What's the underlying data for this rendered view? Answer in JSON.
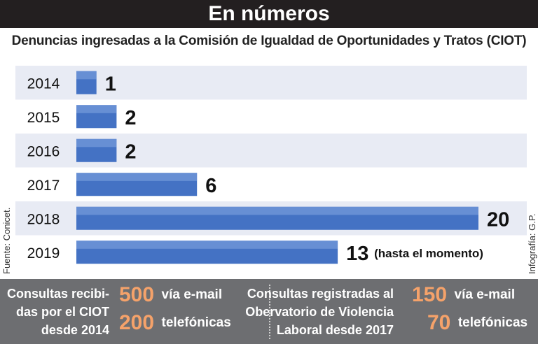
{
  "header": {
    "title": "En números"
  },
  "subtitle": "Denuncias ingresadas a la Comisión de Igualdad de Oportunidades y Tratos (CIOT)",
  "source": "Fuente: Conicet.",
  "credit": "Infografía: G.P.",
  "colors": {
    "bar": "#4472c4",
    "row_alt": "#e8ebf4",
    "header_bg": "#231f20",
    "footer_bg": "#6d6e71",
    "accent": "#f5a26a"
  },
  "chart_data": {
    "type": "bar",
    "orientation": "horizontal",
    "categories": [
      "2014",
      "2015",
      "2016",
      "2017",
      "2018",
      "2019"
    ],
    "values": [
      1,
      2,
      2,
      6,
      20,
      13
    ],
    "value_labels": [
      "1",
      "2",
      "2",
      "6",
      "20",
      "13"
    ],
    "annotations": [
      "",
      "",
      "",
      "",
      "",
      "(hasta el momento)"
    ],
    "title": "Denuncias ingresadas a la Comisión de Igualdad de Oportunidades y Tratos (CIOT)",
    "xlim": [
      0,
      20
    ],
    "grid": false,
    "legend": "none"
  },
  "footer": {
    "left": {
      "description": [
        "Consultas recibi-",
        "das por el CIOT",
        "desde 2014"
      ],
      "stats": [
        {
          "value": "500",
          "label": "vía e-mail"
        },
        {
          "value": "200",
          "label": "telefónicas"
        }
      ]
    },
    "right": {
      "description": [
        "Consultas registradas al",
        "Obervatorio de Violencia",
        "Laboral desde 2017"
      ],
      "stats": [
        {
          "value": "150",
          "label": "vía e-mail"
        },
        {
          "value": "70",
          "label": "telefónicas"
        }
      ]
    }
  }
}
